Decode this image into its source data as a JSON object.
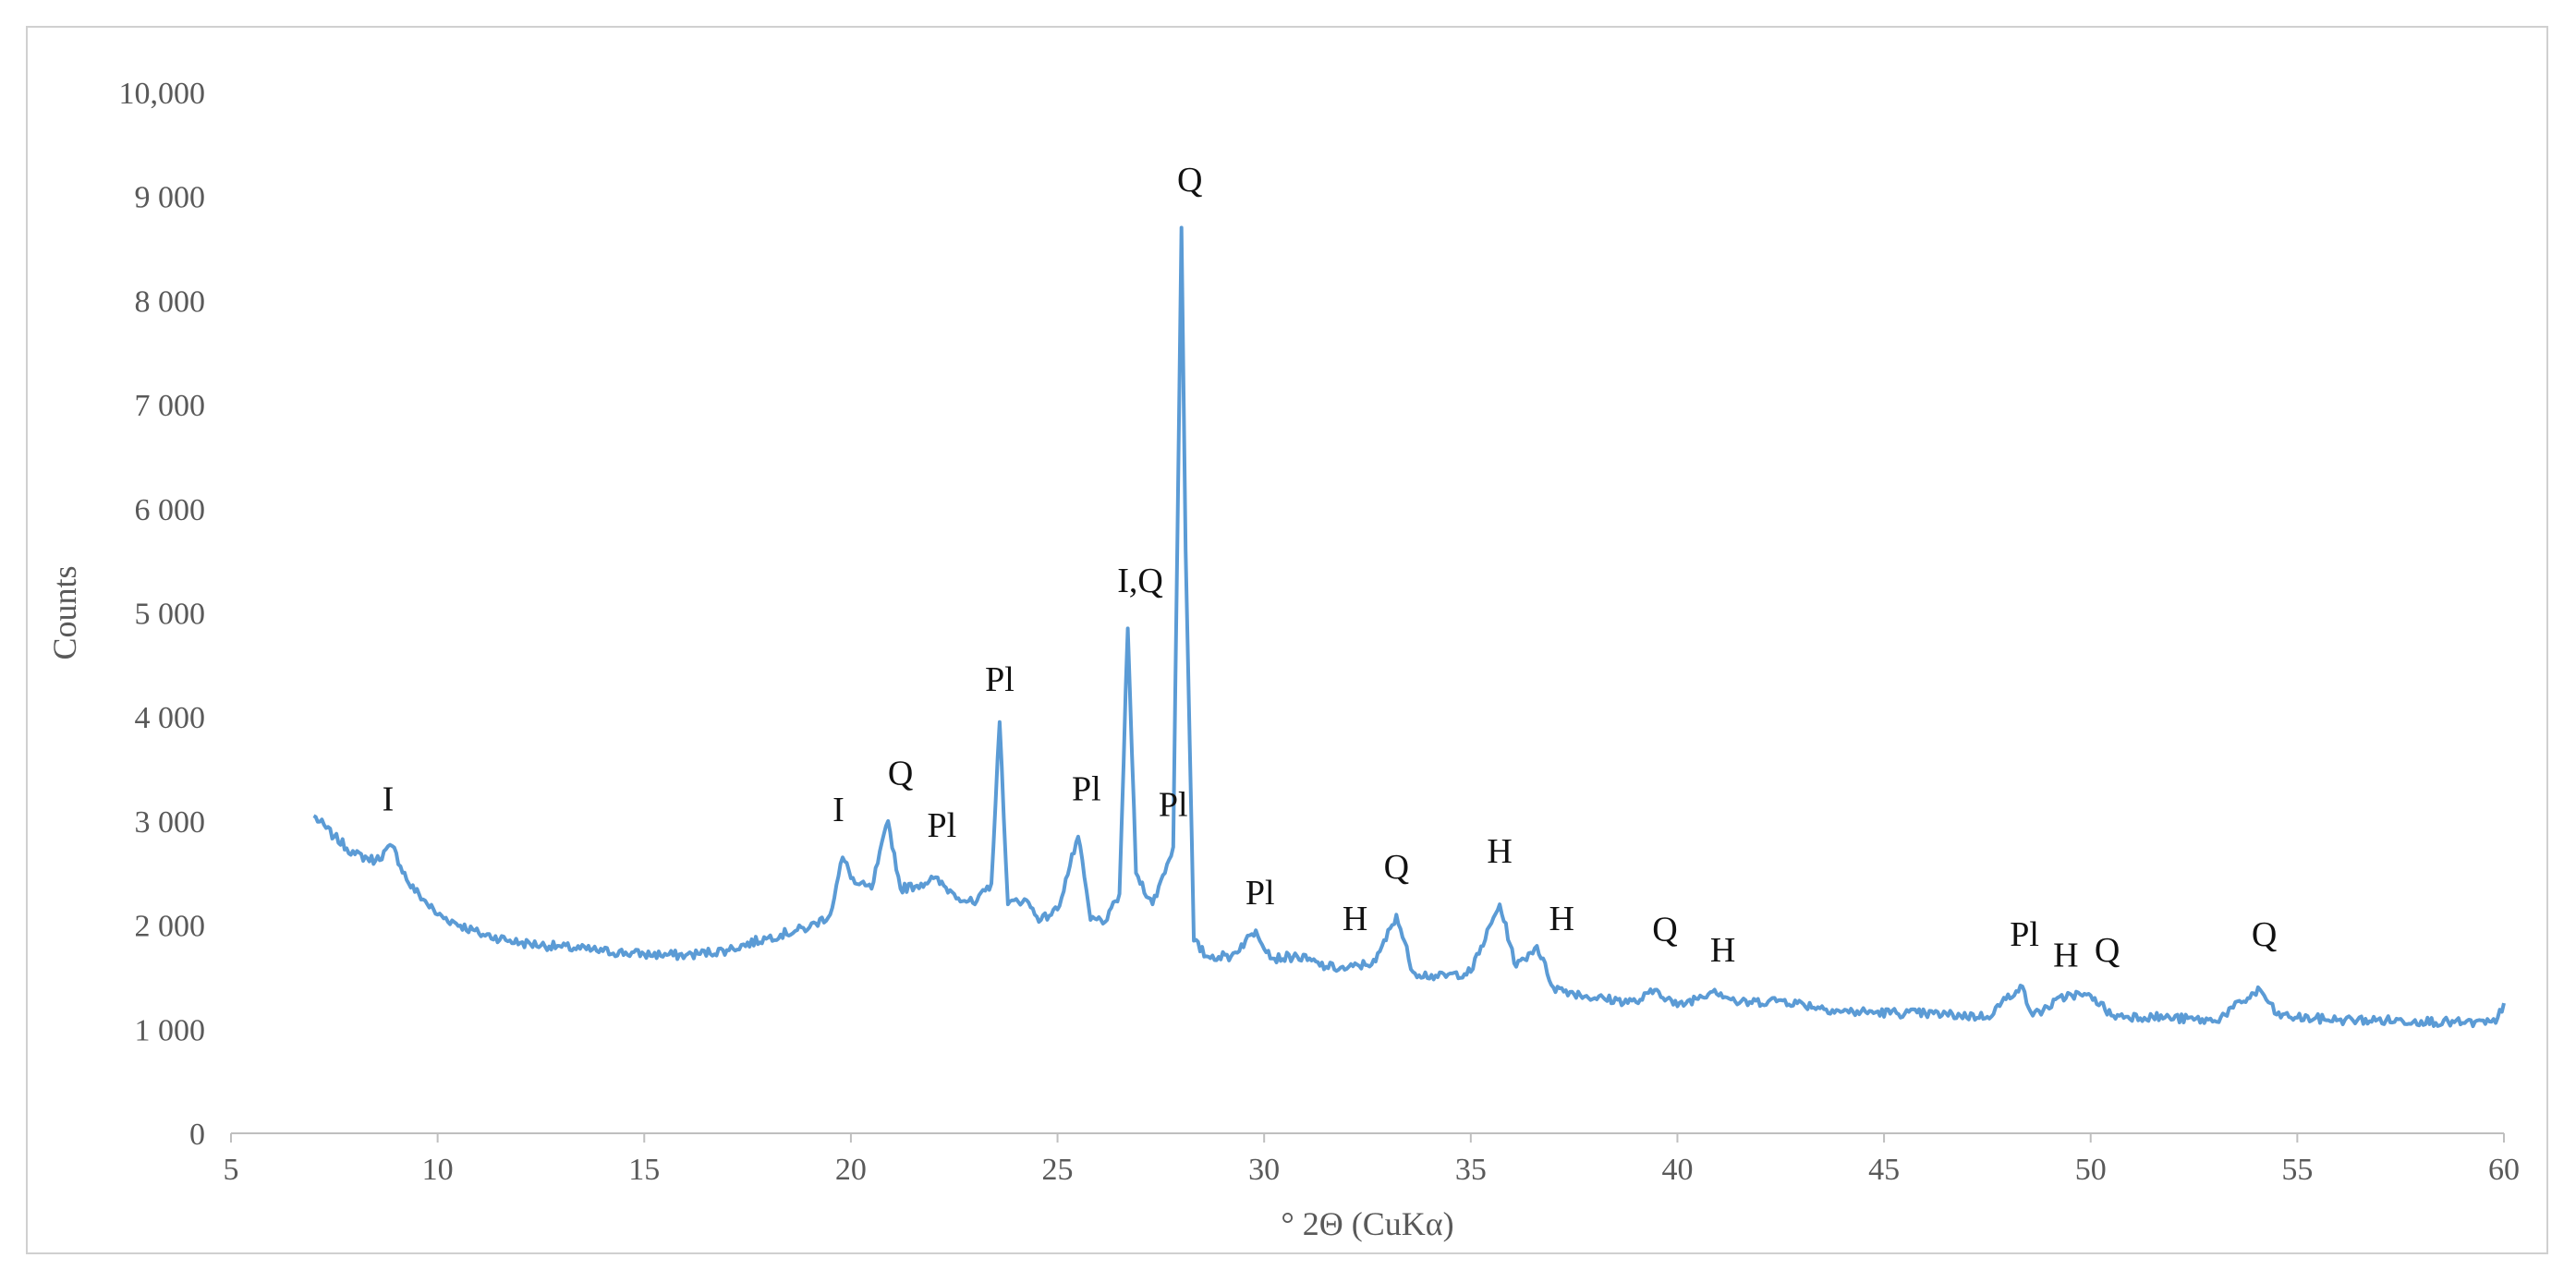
{
  "chart_data": {
    "type": "line",
    "title": "",
    "xlabel": "° 2Θ (CuKα)",
    "ylabel": "Counts",
    "xlim": [
      5,
      60
    ],
    "ylim": [
      0,
      10000
    ],
    "grid": false,
    "legend": "none",
    "line_color": "#5B9BD5",
    "x_ticks": [
      {
        "value": 5,
        "label": "5"
      },
      {
        "value": 10,
        "label": "10"
      },
      {
        "value": 15,
        "label": "15"
      },
      {
        "value": 20,
        "label": "20"
      },
      {
        "value": 25,
        "label": "25"
      },
      {
        "value": 30,
        "label": "30"
      },
      {
        "value": 35,
        "label": "35"
      },
      {
        "value": 40,
        "label": "40"
      },
      {
        "value": 45,
        "label": "45"
      },
      {
        "value": 50,
        "label": "50"
      },
      {
        "value": 55,
        "label": "55"
      },
      {
        "value": 60,
        "label": "60"
      }
    ],
    "y_ticks": [
      {
        "value": 0,
        "label": "0"
      },
      {
        "value": 1000,
        "label": "1 000"
      },
      {
        "value": 2000,
        "label": "2 000"
      },
      {
        "value": 3000,
        "label": "3 000"
      },
      {
        "value": 4000,
        "label": "4 000"
      },
      {
        "value": 5000,
        "label": "5 000"
      },
      {
        "value": 6000,
        "label": "6 000"
      },
      {
        "value": 7000,
        "label": "7 000"
      },
      {
        "value": 8000,
        "label": "8 000"
      },
      {
        "value": 9000,
        "label": "9 000"
      },
      {
        "value": 10000,
        "label": "10,000"
      }
    ],
    "series": [
      {
        "x": [
          7.0,
          7.5,
          8.0,
          8.5,
          8.9,
          9.3,
          10.0,
          11.0,
          12.0,
          13.0,
          14.0,
          15.0,
          16.0,
          17.0,
          18.0,
          19.0,
          19.5,
          19.8,
          20.1,
          20.5,
          20.9,
          21.2,
          21.6,
          22.0,
          22.5,
          23.0,
          23.4,
          23.6,
          23.8,
          24.2,
          24.6,
          25.0,
          25.5,
          25.8,
          26.2,
          26.5,
          26.7,
          26.9,
          27.3,
          27.8,
          28.0,
          28.1,
          28.3,
          28.6,
          29.2,
          29.8,
          30.2,
          30.8,
          31.5,
          32.0,
          32.7,
          33.2,
          33.6,
          34.2,
          35.0,
          35.7,
          36.1,
          36.6,
          37.0,
          38.0,
          39.0,
          39.5,
          40.0,
          40.9,
          41.5,
          42.5,
          44.0,
          46.0,
          47.5,
          48.3,
          48.6,
          49.5,
          50.1,
          50.5,
          51.5,
          53.0,
          54.1,
          54.5,
          55.0,
          56.0,
          58.0,
          59.0,
          59.8,
          60.0
        ],
        "y": [
          3050,
          2850,
          2680,
          2620,
          2760,
          2400,
          2100,
          1920,
          1830,
          1790,
          1750,
          1720,
          1710,
          1760,
          1880,
          1980,
          2100,
          2650,
          2400,
          2350,
          3000,
          2350,
          2380,
          2450,
          2300,
          2200,
          2400,
          3950,
          2200,
          2250,
          2050,
          2150,
          2850,
          2050,
          2050,
          2300,
          4850,
          2500,
          2200,
          2750,
          8700,
          5600,
          1850,
          1700,
          1700,
          1950,
          1680,
          1700,
          1600,
          1580,
          1650,
          2100,
          1550,
          1500,
          1550,
          2200,
          1600,
          1800,
          1400,
          1300,
          1260,
          1380,
          1220,
          1380,
          1250,
          1280,
          1170,
          1150,
          1120,
          1420,
          1130,
          1340,
          1300,
          1130,
          1120,
          1080,
          1380,
          1140,
          1110,
          1090,
          1080,
          1060,
          1060,
          1250
        ]
      }
    ],
    "annotations": [
      {
        "text": "I",
        "x": 8.8,
        "y": 3100
      },
      {
        "text": "I",
        "x": 19.7,
        "y": 3000
      },
      {
        "text": "Q",
        "x": 21.2,
        "y": 3350
      },
      {
        "text": "Pl",
        "x": 22.2,
        "y": 2850
      },
      {
        "text": "Pl",
        "x": 23.6,
        "y": 4250
      },
      {
        "text": "Pl",
        "x": 25.7,
        "y": 3200
      },
      {
        "text": "I,Q",
        "x": 27.0,
        "y": 5200
      },
      {
        "text": "Pl",
        "x": 27.8,
        "y": 3050
      },
      {
        "text": "Q",
        "x": 28.2,
        "y": 9050
      },
      {
        "text": "Pl",
        "x": 29.9,
        "y": 2200
      },
      {
        "text": "H",
        "x": 32.2,
        "y": 1950
      },
      {
        "text": "Q",
        "x": 33.2,
        "y": 2450
      },
      {
        "text": "H",
        "x": 35.7,
        "y": 2600
      },
      {
        "text": "H",
        "x": 37.2,
        "y": 1950
      },
      {
        "text": "Q",
        "x": 39.7,
        "y": 1850
      },
      {
        "text": "H",
        "x": 41.1,
        "y": 1650
      },
      {
        "text": "Pl",
        "x": 48.4,
        "y": 1800
      },
      {
        "text": "H",
        "x": 49.4,
        "y": 1600
      },
      {
        "text": "Q",
        "x": 50.4,
        "y": 1650
      },
      {
        "text": "Q",
        "x": 54.2,
        "y": 1800
      }
    ]
  }
}
